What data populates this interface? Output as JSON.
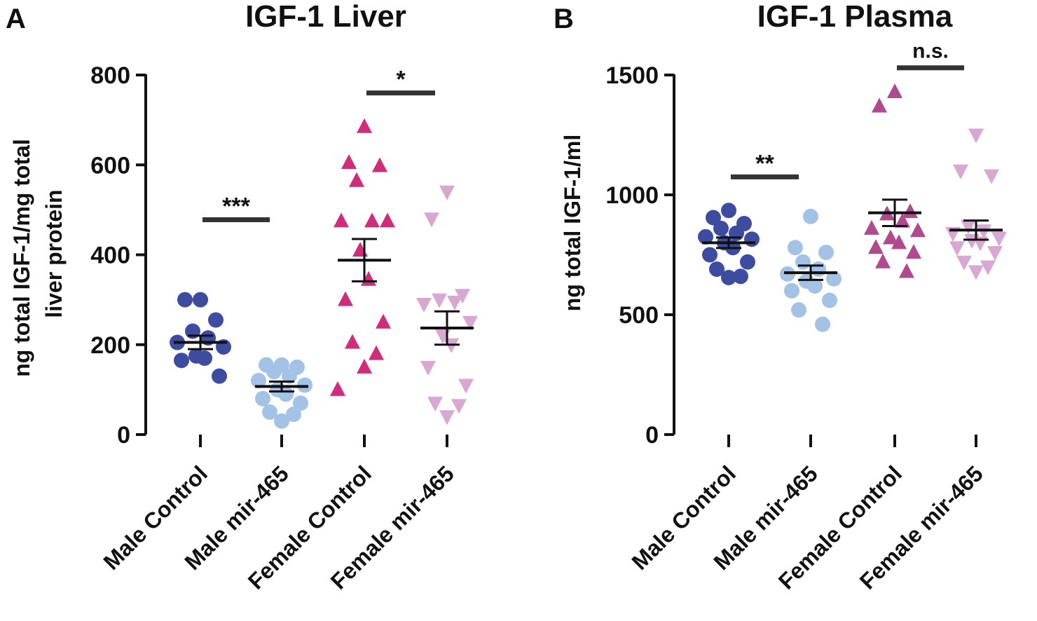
{
  "chart_data": [
    {
      "type": "scatter",
      "panel_label": "A",
      "title": "IGF-1 Liver",
      "ylabel_lines": [
        "ng total IGF-1/mg total",
        "liver protein"
      ],
      "ylim": [
        0,
        800
      ],
      "yticks": [
        0,
        200,
        400,
        600,
        800
      ],
      "categories": [
        "Male Control",
        "Male mir-465",
        "Female Control",
        "Female mir-465"
      ],
      "series": [
        {
          "name": "Male Control",
          "marker": "circle",
          "color": "#3d4c9f",
          "values": [
            300,
            300,
            255,
            230,
            215,
            205,
            195,
            175,
            170,
            165,
            130
          ],
          "mean": 205,
          "sem": 15
        },
        {
          "name": "Male mir-465",
          "marker": "circle",
          "color": "#a3c2e6",
          "values": [
            155,
            155,
            150,
            140,
            130,
            120,
            110,
            100,
            90,
            80,
            70,
            50,
            45,
            30
          ],
          "mean": 107,
          "sem": 11
        },
        {
          "name": "Female Control",
          "marker": "triangle-up",
          "color": "#d12b7c",
          "values": [
            685,
            605,
            598,
            565,
            475,
            475,
            475,
            410,
            345,
            300,
            250,
            205,
            180,
            150,
            100
          ],
          "mean": 388,
          "sem": 47
        },
        {
          "name": "Female mir-465",
          "marker": "triangle-down",
          "color": "#d8a8d2",
          "values": [
            540,
            480,
            310,
            300,
            295,
            290,
            250,
            220,
            200,
            150,
            110,
            70,
            65,
            40
          ],
          "mean": 237,
          "sem": 37
        }
      ],
      "significance": [
        {
          "label": "***",
          "groups": [
            0,
            1
          ],
          "y": 478
        },
        {
          "label": "*",
          "groups": [
            2,
            3
          ],
          "y": 760
        }
      ]
    },
    {
      "type": "scatter",
      "panel_label": "B",
      "title": "IGF-1 Plasma",
      "ylabel_lines": [
        "ng total IGF-1/ml"
      ],
      "ylim": [
        0,
        1500
      ],
      "yticks": [
        0,
        500,
        1000,
        1500
      ],
      "categories": [
        "Male Control",
        "Male mir-465",
        "Female Control",
        "Female mir-465"
      ],
      "series": [
        {
          "name": "Male Control",
          "marker": "circle",
          "color": "#3d4c9f",
          "values": [
            935,
            905,
            880,
            860,
            840,
            825,
            815,
            800,
            780,
            750,
            720,
            690,
            660,
            655
          ],
          "mean": 800,
          "sem": 22
        },
        {
          "name": "Male mir-465",
          "marker": "circle",
          "color": "#a3c2e6",
          "values": [
            910,
            780,
            760,
            720,
            690,
            670,
            650,
            640,
            620,
            600,
            560,
            520,
            460
          ],
          "mean": 675,
          "sem": 30
        },
        {
          "name": "Female Control",
          "marker": "triangle-up",
          "color": "#b04a8e",
          "values": [
            1430,
            1370,
            930,
            920,
            890,
            860,
            850,
            820,
            800,
            780,
            760,
            720,
            680
          ],
          "mean": 925,
          "sem": 55
        },
        {
          "name": "Female mir-465",
          "marker": "triangle-down",
          "color": "#d8a8d2",
          "values": [
            1250,
            1100,
            1080,
            870,
            850,
            840,
            820,
            810,
            800,
            780,
            760,
            720,
            700,
            680
          ],
          "mean": 853,
          "sem": 40
        }
      ],
      "significance": [
        {
          "label": "**",
          "groups": [
            0,
            1
          ],
          "y": 1075
        },
        {
          "label": "n.s.",
          "groups": [
            2,
            3
          ],
          "y": 1530
        }
      ]
    }
  ]
}
